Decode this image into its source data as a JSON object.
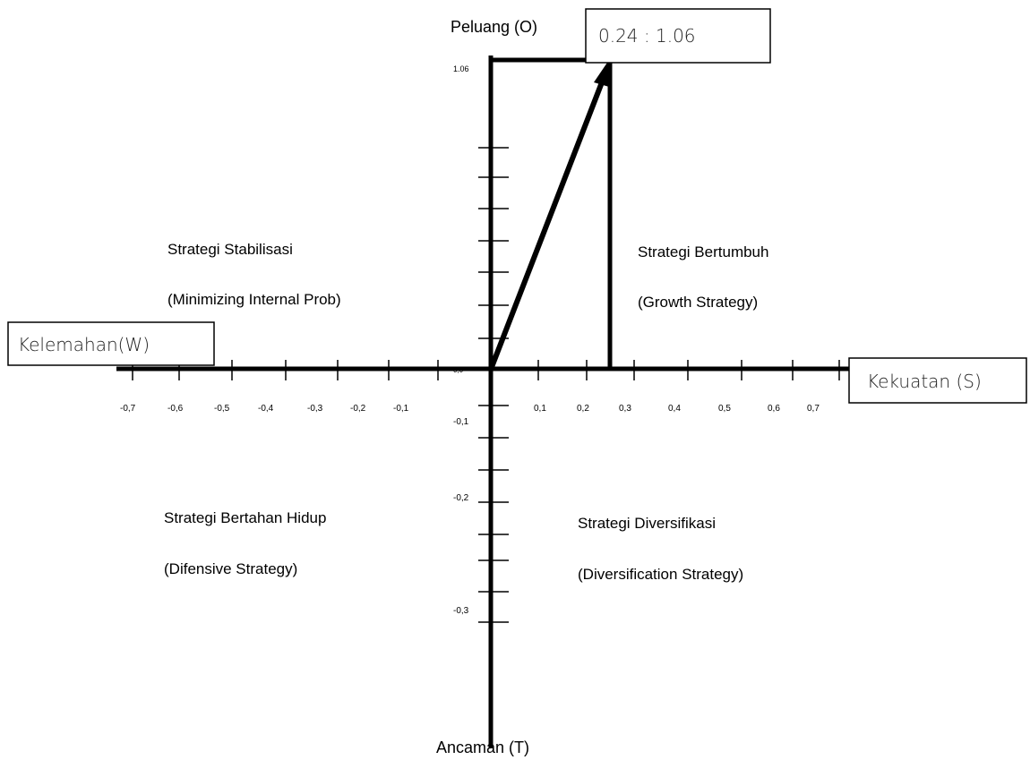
{
  "axes": {
    "top_label": "Peluang (O)",
    "bottom_label": "Ancaman (T)",
    "left_label": "Kelemahan(W)",
    "right_label": "Kekuatan (S)"
  },
  "point": {
    "label": "0.24 : 1.06",
    "x": 0.24,
    "y": 1.06
  },
  "y_top_label": "1.06",
  "origin_label": "0,0",
  "x_tick_labels_neg": [
    "-0,7",
    "-0,6",
    "-0,5",
    "-0,4",
    "-0,3",
    "-0,2",
    "-0,1"
  ],
  "x_tick_labels_pos": [
    "0,1",
    "0,2",
    "0,3",
    "0,4",
    "0,5",
    "0,6",
    "0,7"
  ],
  "y_tick_labels_neg": [
    "-0,1",
    "-0,2",
    "-0,3"
  ],
  "quadrants": {
    "top_left": {
      "title": "Strategi Stabilisasi",
      "subtitle": "(Minimizing Internal Prob)"
    },
    "top_right": {
      "title": "Strategi Bertumbuh",
      "subtitle": "(Growth Strategy)"
    },
    "bottom_left": {
      "title": "Strategi Bertahan Hidup",
      "subtitle": "(Difensive Strategy)"
    },
    "bottom_right": {
      "title": "Strategi Diversifikasi",
      "subtitle": "(Diversification Strategy)"
    }
  },
  "colors": {
    "axis": "#000000",
    "background": "#ffffff"
  }
}
